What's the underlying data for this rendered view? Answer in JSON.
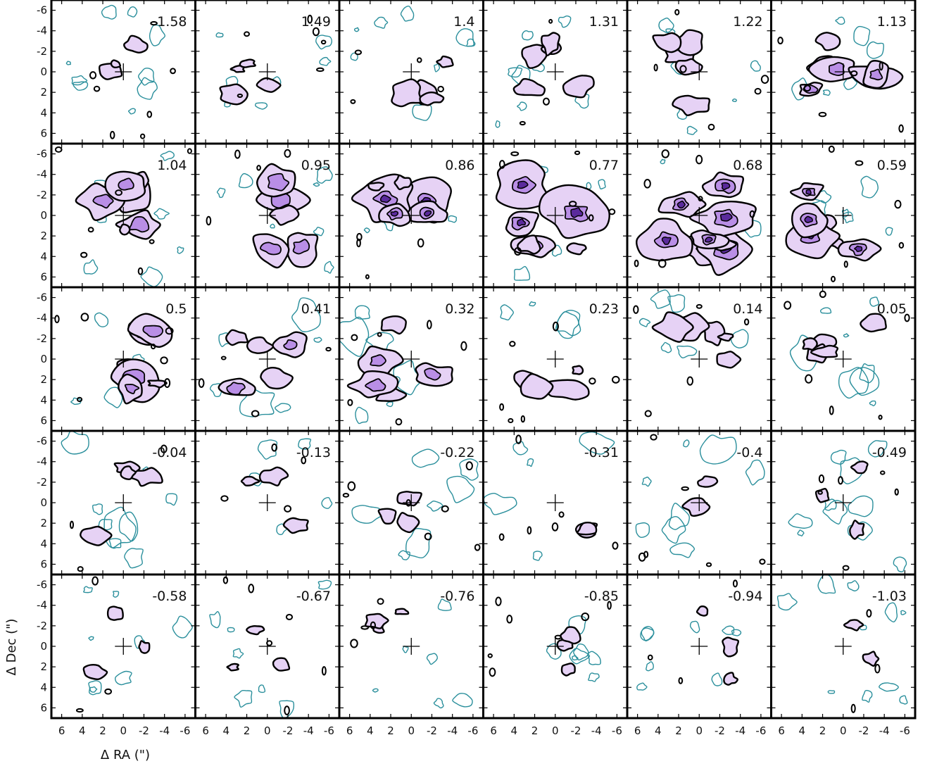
{
  "chart_data": {
    "type": "channel-map-grid",
    "rows": 5,
    "columns": 6,
    "xlabel": "Δ RA (\")",
    "ylabel": "Δ Dec (\")",
    "xlim": [
      7,
      -7
    ],
    "ylim": [
      7,
      -7
    ],
    "x_ticks": [
      6,
      4,
      2,
      0,
      -2,
      -4,
      -6
    ],
    "y_ticks": [
      -6,
      -4,
      -2,
      0,
      2,
      4,
      6
    ],
    "panel_values": [
      1.58,
      1.49,
      1.4,
      1.31,
      1.22,
      1.13,
      1.04,
      0.95,
      0.86,
      0.77,
      0.68,
      0.59,
      0.5,
      0.41,
      0.32,
      0.23,
      0.14,
      0.05,
      -0.04,
      -0.13,
      -0.22,
      -0.31,
      -0.4,
      -0.49,
      -0.58,
      -0.67,
      -0.76,
      -0.85,
      -0.94,
      -1.03
    ],
    "center_marker": "cross at (0, 0)",
    "positive_contour_color": "#000000",
    "negative_contour_color": "#2a8f9c",
    "fill_colormap": [
      "#e6d2f5",
      "#b98ee6",
      "#8a58c8",
      "#5a2a9c"
    ],
    "grid": false
  }
}
